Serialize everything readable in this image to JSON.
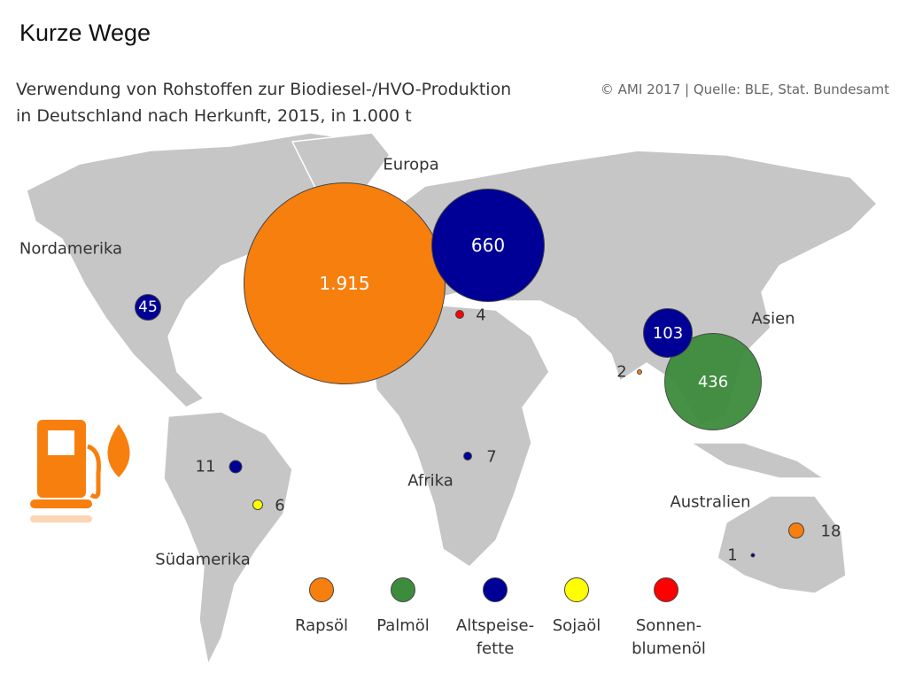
{
  "title": "Kurze Wege",
  "subtitle_line1": "Verwendung von Rohstoffen zur Biodiesel-/HVO-Produktion",
  "subtitle_line2": "in Deutschland nach Herkunft, 2015, in 1.000 t",
  "source": "© AMI 2017 | Quelle: BLE, Stat. Bundesamt",
  "regions": {
    "europa": "Europa",
    "nordamerika": "Nordamerika",
    "asien": "Asien",
    "afrika": "Afrika",
    "australien": "Australien",
    "suedamerika": "Südamerika"
  },
  "colors": {
    "rapsoel": "#f77f0e",
    "palmoel": "#3d8c3d",
    "altspeisefette": "#000096",
    "sojaoel": "#ffff00",
    "sonnenblumenoel": "#ff0000",
    "land": "#c6c6c6"
  },
  "values": {
    "europa_raps": "1.915",
    "europa_alt": "660",
    "europa_sonnen": "4",
    "nordamerika_alt": "45",
    "asien_alt": "103",
    "asien_palm": "436",
    "asien_raps": "2",
    "afrika_alt": "7",
    "suedamerika_alt": "11",
    "suedamerika_soja": "6",
    "australien_raps": "18",
    "australien_alt": "1"
  },
  "legend": {
    "rapsoel": "Rapsöl",
    "palmoel": "Palmöl",
    "alt1": "Altspeise-",
    "alt2": "fette",
    "soja": "Sojaöl",
    "sonnen1": "Sonnen-",
    "sonnen2": "blumenöl"
  }
}
